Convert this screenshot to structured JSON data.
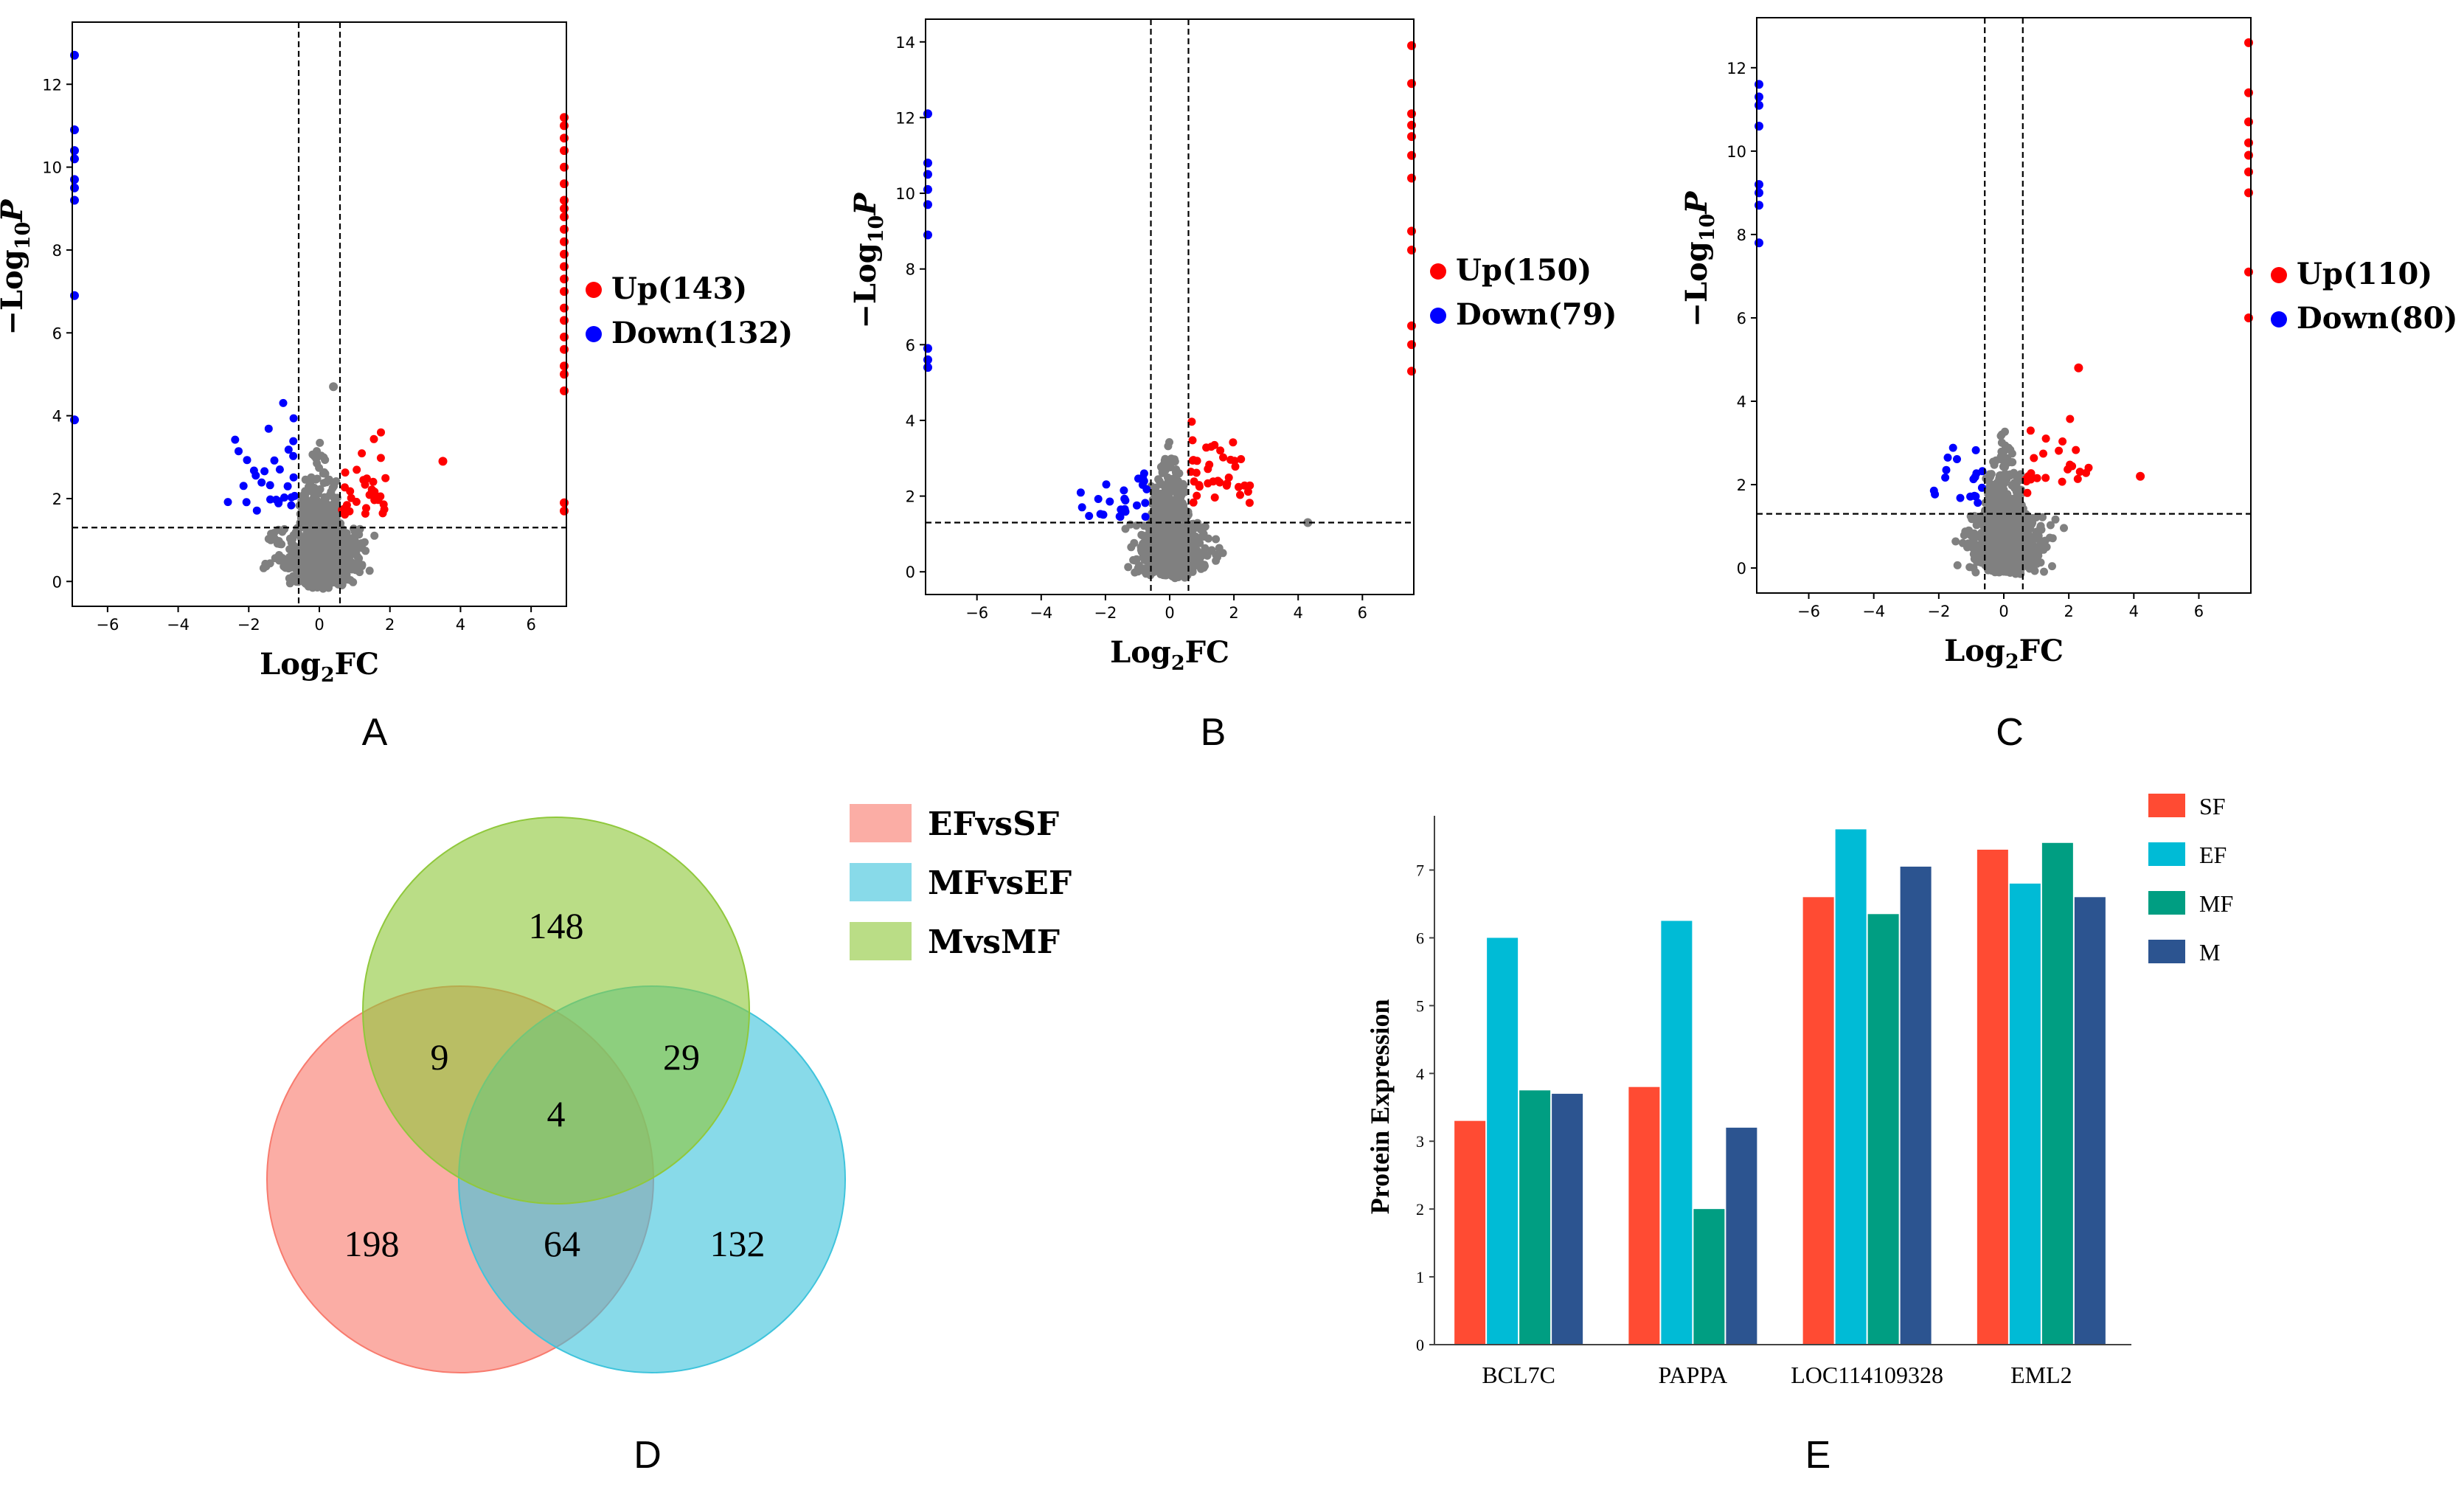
{
  "chart_data": [
    {
      "type": "scatter",
      "panel": "A",
      "xlabel": "Log2FC",
      "ylabel": "-Log10P",
      "xlim": [
        -7,
        7
      ],
      "ylim": [
        -0.6,
        13.5
      ],
      "xticks": [
        -6,
        -4,
        -2,
        0,
        2,
        4,
        6
      ],
      "yticks": [
        0,
        2,
        4,
        6,
        8,
        10,
        12
      ],
      "fc_threshold": 0.585,
      "p_threshold": 1.3,
      "legend": [
        {
          "label": "Up(143)",
          "color": "#ff0000"
        },
        {
          "label": "Down(132)",
          "color": "#0000ff"
        }
      ],
      "up_edge_y": [
        11.2,
        11.0,
        10.7,
        10.4,
        10.0,
        9.6,
        9.2,
        9.0,
        8.8,
        8.5,
        8.2,
        7.9,
        7.6,
        7.3,
        7.0,
        6.6,
        6.3,
        5.9,
        5.6,
        5.2,
        5.0,
        4.6,
        1.9,
        1.7
      ],
      "down_edge_y": [
        12.7,
        10.9,
        10.4,
        10.2,
        9.7,
        9.5,
        9.2,
        6.9,
        3.9
      ],
      "outliers": [
        {
          "x": 3.5,
          "y": 2.9,
          "color": "#ff0000"
        },
        {
          "x": 0.4,
          "y": 4.7,
          "color": "#808080"
        }
      ]
    },
    {
      "type": "scatter",
      "panel": "B",
      "xlabel": "Log2FC",
      "ylabel": "-Log10P",
      "xlim": [
        -7.6,
        7.6
      ],
      "ylim": [
        -0.6,
        14.6
      ],
      "xticks": [
        -6,
        -4,
        -2,
        0,
        2,
        4,
        6
      ],
      "yticks": [
        0,
        2,
        4,
        6,
        8,
        10,
        12,
        14
      ],
      "fc_threshold": 0.585,
      "p_threshold": 1.3,
      "legend": [
        {
          "label": "Up(150)",
          "color": "#ff0000"
        },
        {
          "label": "Down(79)",
          "color": "#0000ff"
        }
      ],
      "up_edge_y": [
        13.9,
        12.9,
        12.1,
        11.8,
        11.5,
        11.0,
        10.4,
        9.0,
        8.5,
        6.5,
        6.0,
        5.3
      ],
      "down_edge_y": [
        12.1,
        10.8,
        10.5,
        10.1,
        9.7,
        8.9,
        5.9,
        5.6,
        5.4
      ],
      "outliers": [
        {
          "x": 4.3,
          "y": 1.3,
          "color": "#808080"
        }
      ]
    },
    {
      "type": "scatter",
      "panel": "C",
      "xlabel": "Log2FC",
      "ylabel": "-Log10P",
      "xlim": [
        -7.6,
        7.6
      ],
      "ylim": [
        -0.6,
        13.2
      ],
      "xticks": [
        -6,
        -4,
        -2,
        0,
        2,
        4,
        6
      ],
      "yticks": [
        0,
        2,
        4,
        6,
        8,
        10,
        12
      ],
      "fc_threshold": 0.585,
      "p_threshold": 1.3,
      "legend": [
        {
          "label": "Up(110)",
          "color": "#ff0000"
        },
        {
          "label": "Down(80)",
          "color": "#0000ff"
        }
      ],
      "up_edge_y": [
        12.6,
        11.4,
        10.7,
        10.2,
        9.9,
        9.5,
        9.0,
        7.1,
        6.0
      ],
      "down_edge_y": [
        11.6,
        11.3,
        11.1,
        10.6,
        9.2,
        9.0,
        8.7,
        7.8
      ],
      "outliers": [
        {
          "x": 4.2,
          "y": 2.2,
          "color": "#ff0000"
        },
        {
          "x": 2.3,
          "y": 4.8,
          "color": "#ff0000"
        }
      ]
    },
    {
      "type": "venn",
      "panel": "D",
      "sets": [
        {
          "label": "EFvsSF",
          "color": "#f87b6e"
        },
        {
          "label": "MFvsEF",
          "color": "#3fc4dc"
        },
        {
          "label": "MvsMF",
          "color": "#90c83c"
        }
      ],
      "regions": {
        "EFvsSF_only": 198,
        "MFvsEF_only": 132,
        "MvsMF_only": 148,
        "EFvsSF_MvsMF": 9,
        "MFvsEF_MvsMF": 29,
        "EFvsSF_MFvsEF": 64,
        "all": 4
      }
    },
    {
      "type": "bar",
      "panel": "E",
      "ylabel": "Protein Expression",
      "ylim": [
        0,
        7.8
      ],
      "yticks": [
        0,
        1,
        2,
        3,
        4,
        5,
        6,
        7
      ],
      "categories": [
        "BCL7C",
        "PAPPA",
        "LOC114109328",
        "EML2"
      ],
      "series": [
        {
          "name": "SF",
          "color": "#ff4b33",
          "values": [
            3.3,
            3.8,
            6.6,
            7.3
          ]
        },
        {
          "name": "EF",
          "color": "#00bbd6",
          "values": [
            6.0,
            6.25,
            7.6,
            6.8
          ]
        },
        {
          "name": "MF",
          "color": "#009e82",
          "values": [
            3.75,
            2.0,
            6.35,
            7.4
          ]
        },
        {
          "name": "M",
          "color": "#2c5490",
          "values": [
            3.7,
            3.2,
            7.05,
            6.6
          ]
        }
      ]
    }
  ],
  "panel_labels": [
    "A",
    "B",
    "C",
    "D",
    "E"
  ]
}
